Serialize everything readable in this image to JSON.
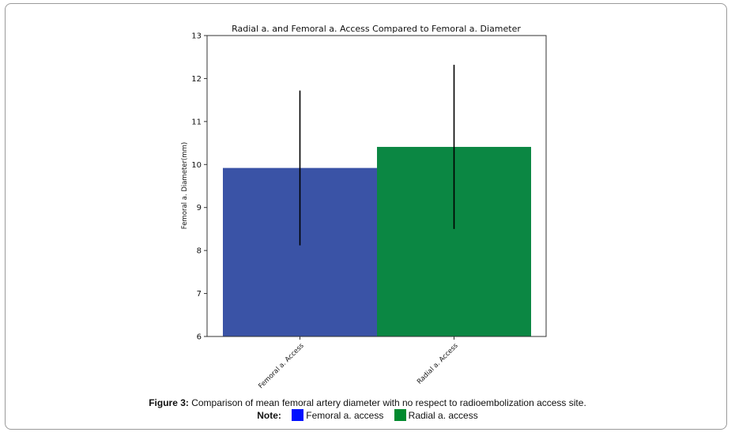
{
  "figure": {
    "label": "Figure 3:",
    "caption": "Comparison of mean femoral artery diameter with no respect to radioembolization access site.",
    "note_label": "Note:",
    "legend": [
      {
        "label": "Femoral a. access",
        "color": "#0010ff"
      },
      {
        "label": "Radial a. access",
        "color": "#008a2e"
      }
    ]
  },
  "chart_data": {
    "type": "bar",
    "title": "Radial a. and Femoral a. Access Compared to Femoral a. Diameter",
    "xlabel": "",
    "ylabel": "Femoral a. Diameter(mm)",
    "categories": [
      "Femoral a. Access",
      "Radial a. Access"
    ],
    "values": [
      9.92,
      10.41
    ],
    "error_low": [
      8.12,
      8.5
    ],
    "error_high": [
      11.72,
      12.32
    ],
    "colors": [
      "#3a53a6",
      "#0b8743"
    ],
    "ylim": [
      6,
      13
    ],
    "yticks": [
      6,
      7,
      8,
      9,
      10,
      11,
      12,
      13
    ],
    "grid": false
  }
}
